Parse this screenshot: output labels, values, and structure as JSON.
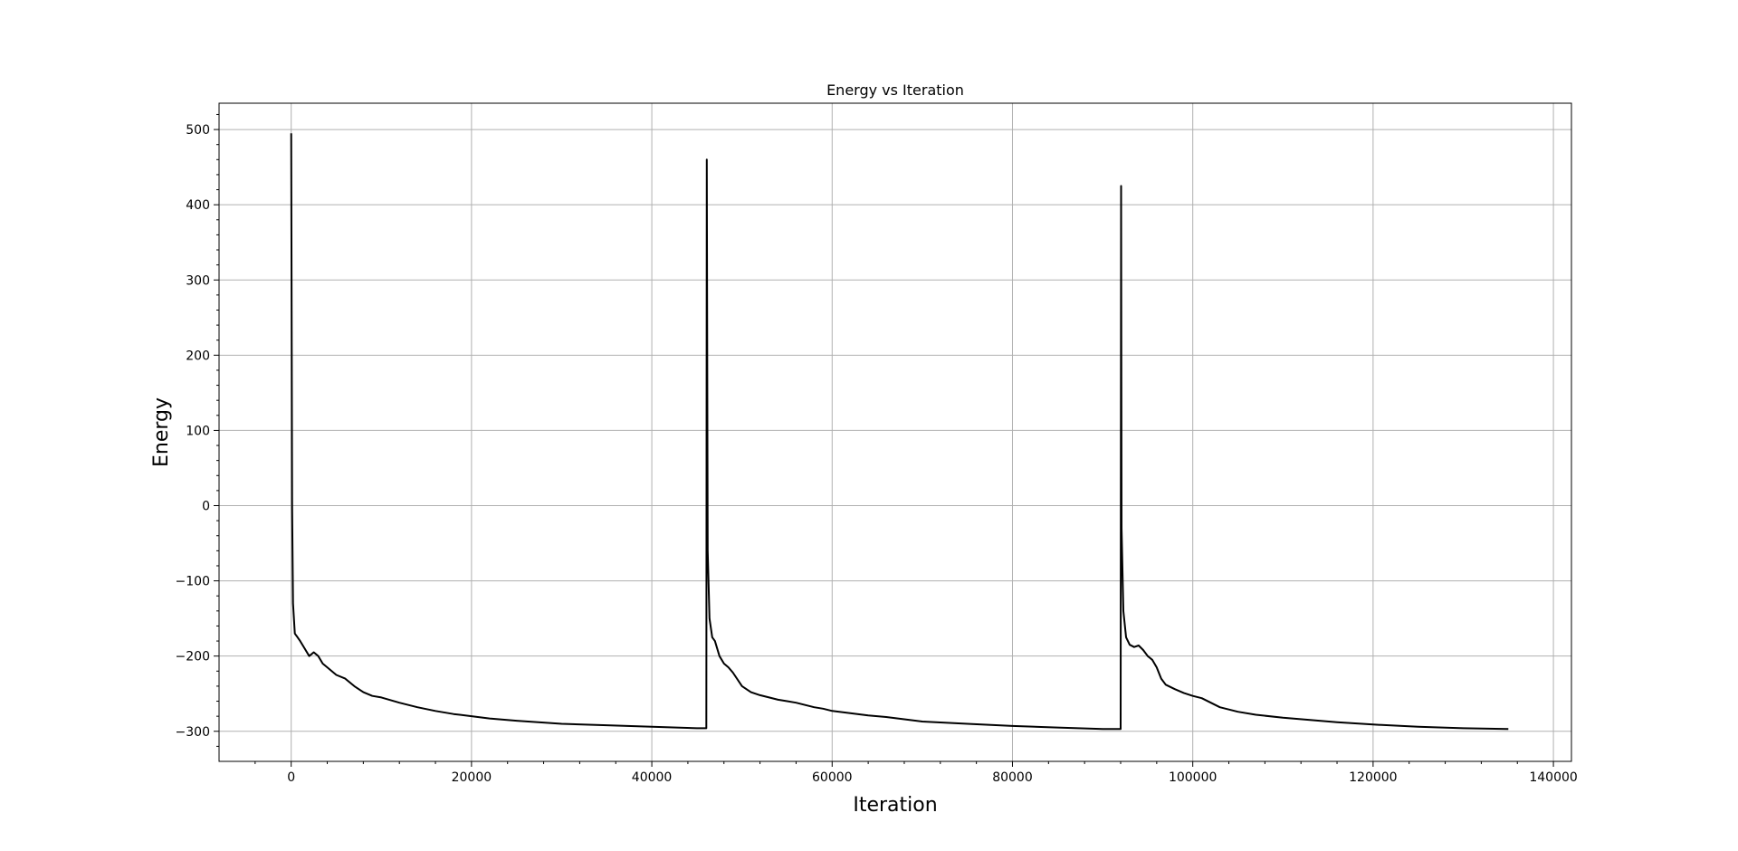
{
  "chart_data": {
    "type": "line",
    "title": "Energy vs Iteration",
    "xlabel": "Iteration",
    "ylabel": "Energy",
    "xlim": [
      -8000,
      142000
    ],
    "ylim": [
      -340,
      535
    ],
    "xticks": [
      0,
      20000,
      40000,
      60000,
      80000,
      100000,
      120000,
      140000
    ],
    "xtick_labels": [
      "0",
      "20000",
      "40000",
      "60000",
      "80000",
      "100000",
      "120000",
      "140000"
    ],
    "yticks": [
      -300,
      -200,
      -100,
      0,
      100,
      200,
      300,
      400,
      500
    ],
    "ytick_labels": [
      "−300",
      "−200",
      "−100",
      "0",
      "100",
      "200",
      "300",
      "400",
      "500"
    ],
    "grid": true,
    "line_color": "#000000",
    "series": [
      {
        "x": [
          0,
          100,
          200,
          400,
          700,
          1000,
          1500,
          2000,
          2500,
          3000,
          3500,
          4000,
          5000,
          6000,
          7000,
          8000,
          9000,
          10000,
          12000,
          14000,
          16000,
          18000,
          20000,
          22000,
          25000,
          30000,
          35000,
          40000,
          45000,
          46050,
          46100,
          46200,
          46400,
          46700,
          47000,
          47500,
          48000,
          48500,
          49000,
          50000,
          51000,
          52000,
          53000,
          54000,
          55000,
          56000,
          57000,
          58000,
          59000,
          60000,
          62000,
          64000,
          66000,
          68000,
          70000,
          75000,
          80000,
          85000,
          90000,
          92000,
          92050,
          92100,
          92300,
          92600,
          93000,
          93500,
          94000,
          94500,
          95000,
          95500,
          96000,
          96500,
          97000,
          98000,
          99000,
          100000,
          101000,
          102000,
          103000,
          105000,
          107000,
          110000,
          113000,
          116000,
          120000,
          125000,
          130000,
          135000
        ],
        "y": [
          495,
          0,
          -130,
          -170,
          -175,
          -180,
          -190,
          -200,
          -195,
          -200,
          -210,
          -215,
          -225,
          -230,
          -240,
          -248,
          -253,
          -255,
          -262,
          -268,
          -273,
          -277,
          -280,
          -283,
          -286,
          -290,
          -292,
          -294,
          -296,
          -296,
          460,
          -60,
          -150,
          -175,
          -180,
          -200,
          -210,
          -215,
          -222,
          -240,
          -248,
          -252,
          -255,
          -258,
          -260,
          -262,
          -265,
          -268,
          -270,
          -273,
          -276,
          -279,
          -281,
          -284,
          -287,
          -290,
          -293,
          -295,
          -297,
          -297,
          425,
          -30,
          -140,
          -175,
          -185,
          -188,
          -186,
          -192,
          -200,
          -205,
          -215,
          -230,
          -238,
          -244,
          -249,
          -253,
          -256,
          -262,
          -268,
          -274,
          -278,
          -282,
          -285,
          -288,
          -291,
          -294,
          -296,
          -297
        ]
      }
    ]
  }
}
